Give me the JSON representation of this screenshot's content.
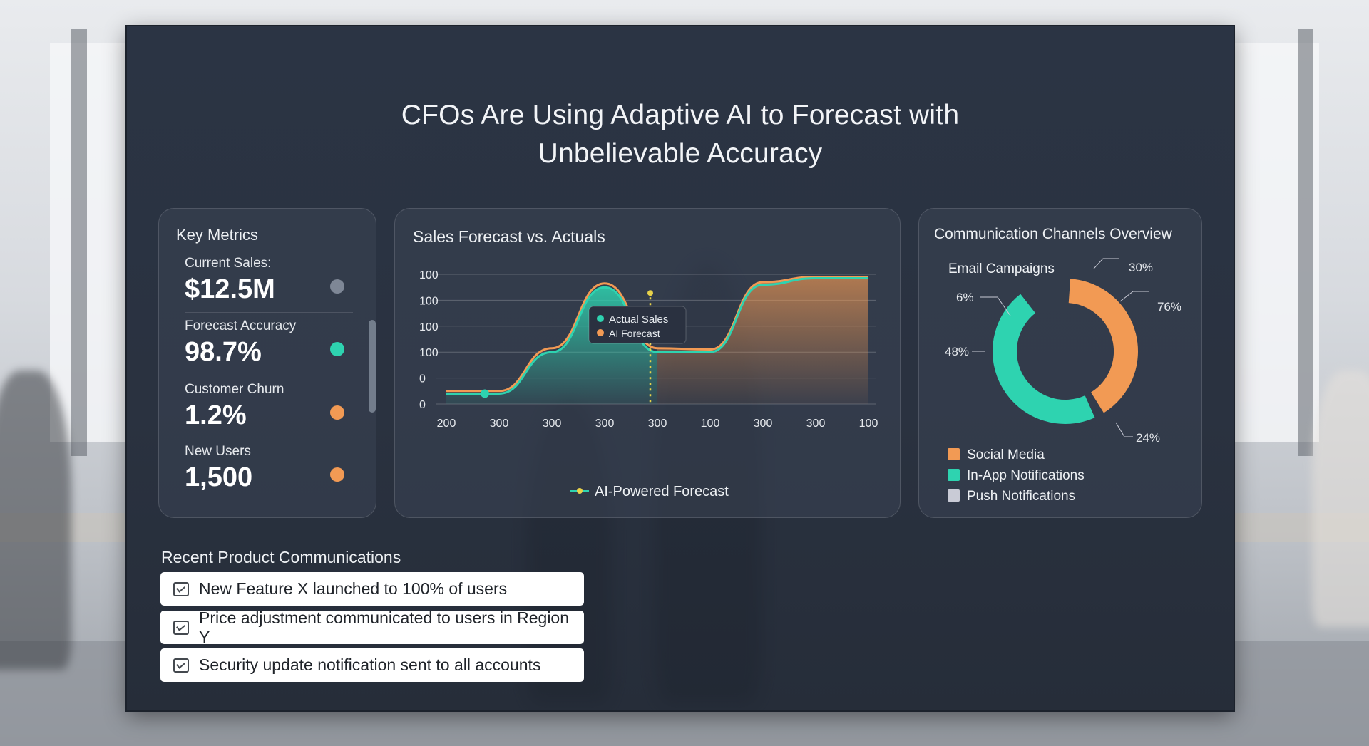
{
  "title_line1": "CFOs Are Using Adaptive AI to Forecast with",
  "title_line2": "Unbelievable Accuracy",
  "key_metrics": {
    "title": "Key Metrics",
    "items": [
      {
        "label": "Current Sales:",
        "value": "$12.5M",
        "dot_color": "#7e8796"
      },
      {
        "label": "Forecast Accuracy",
        "value": "98.7%",
        "dot_color": "#2ed3b0"
      },
      {
        "label": "Customer Churn",
        "value": "1.2%",
        "dot_color": "#f29a54"
      },
      {
        "label": "New Users",
        "value": "1,500",
        "dot_color": "#f29a54"
      }
    ]
  },
  "sales_chart": {
    "title": "Sales Forecast vs. Actuals",
    "legend_items": [
      "Actual Sales",
      "AI Forecast"
    ],
    "bottom_legend": "AI-Powered Forecast",
    "colors": {
      "actual": "#2ed3b0",
      "forecast": "#f29a54",
      "marker": "#e8d24a"
    }
  },
  "channels_chart": {
    "title": "Communication Channels Overview",
    "top_label": "Email Campaigns",
    "pct_labels": [
      "30%",
      "76%",
      "6%",
      "48%",
      "24%"
    ],
    "colors": {
      "orange": "#f29a54",
      "teal": "#2ed3b0",
      "gray": "#c9cbd6"
    }
  },
  "chart_data": [
    {
      "type": "line",
      "title": "Sales Forecast vs. Actuals",
      "xlabel": "",
      "ylabel": "",
      "x": [
        "200",
        "300",
        "300",
        "300",
        "300",
        "100",
        "300",
        "300",
        "100"
      ],
      "y_tick_labels": [
        "0",
        "0",
        "100",
        "100",
        "100",
        "100"
      ],
      "series": [
        {
          "name": "Actual Sales",
          "values": [
            8,
            8,
            40,
            90,
            40,
            40,
            92,
            97,
            97
          ]
        },
        {
          "name": "AI Forecast",
          "values": [
            10,
            10,
            43,
            93,
            43,
            42,
            94,
            98,
            98
          ]
        }
      ],
      "legend": "top-center",
      "grid": true,
      "annotations": [
        "AI-Powered Forecast"
      ]
    },
    {
      "type": "pie",
      "title": "Communication Channels Overview",
      "slices": [
        {
          "name": "Social Media",
          "value": 30
        },
        {
          "name": "In-App Notifications",
          "value": 48
        },
        {
          "name": "Push Notifications",
          "value": 6
        }
      ],
      "legend": "bottom-left",
      "legend_items": [
        "Social Media",
        "In-App Notifications",
        "Push Notifications"
      ]
    }
  ],
  "recent_comms": {
    "title": "Recent Product Communications",
    "items": [
      "New Feature X launched to 100% of users",
      "Price adjustment communicated to users in Region Y",
      "Security update notification sent to all accounts"
    ]
  }
}
